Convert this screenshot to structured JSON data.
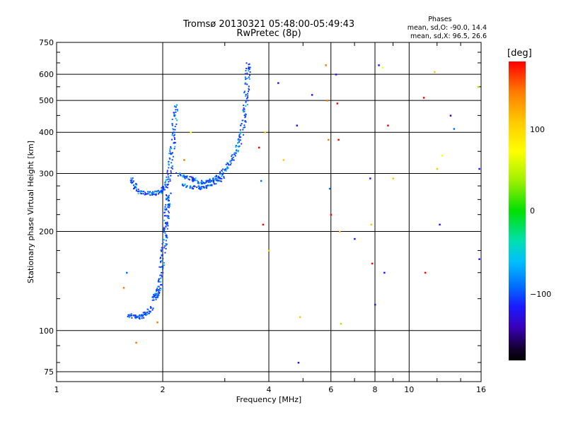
{
  "title_line1": "Tromsø 20130321 05:48:00-05:49:43",
  "title_line2": "RwPretec (8p)",
  "phases": {
    "title": "Phases",
    "line1": "mean, sd,O: -90.0, 14.4",
    "line2": "mean, sd,X:  96.5, 26.6"
  },
  "colorbar": {
    "unit_label": "[deg]",
    "ticks": [
      {
        "label": "100",
        "value": 100
      },
      {
        "label": "0",
        "value": 0
      },
      {
        "label": "−100",
        "value": -100
      }
    ],
    "range": [
      -180,
      180
    ]
  },
  "chart_data": {
    "type": "scatter",
    "xlabel": "Frequency [MHz]",
    "ylabel": "Stationary phase Virtual Height [km]",
    "xscale": "log",
    "yscale": "log",
    "xlim": [
      1,
      16
    ],
    "ylim": [
      70,
      750
    ],
    "xticks": [
      1,
      2,
      4,
      6,
      8,
      10,
      16
    ],
    "xtick_labels": [
      "1",
      "2",
      "4",
      "6",
      "8",
      "10",
      "16"
    ],
    "yticks": [
      75,
      100,
      200,
      300,
      400,
      500,
      600,
      750
    ],
    "ytick_labels": [
      "75",
      "100",
      "200",
      "300",
      "400",
      "500",
      "600",
      "750"
    ],
    "grid": true,
    "colors": {
      "o_trace": "#1530ff",
      "o_trace_alt": "#0060ff",
      "o_trace_cyan": "#00b4ff"
    },
    "traces": [
      {
        "name": "",
        "points": [
          [
            1.6,
            112
          ],
          [
            1.65,
            111
          ],
          [
            1.7,
            110
          ],
          [
            1.75,
            111
          ],
          [
            1.8,
            114
          ],
          [
            1.85,
            118
          ]
        ]
      },
      {
        "name": "",
        "points": [
          [
            1.88,
            125
          ],
          [
            1.9,
            128
          ],
          [
            1.92,
            130
          ],
          [
            1.95,
            135
          ],
          [
            1.97,
            145
          ],
          [
            1.98,
            160
          ],
          [
            2.0,
            175
          ],
          [
            2.02,
            190
          ],
          [
            2.03,
            205
          ],
          [
            2.04,
            220
          ],
          [
            2.05,
            235
          ],
          [
            2.06,
            250
          ],
          [
            2.07,
            262
          ]
        ]
      },
      {
        "name": "",
        "points": [
          [
            1.62,
            290
          ],
          [
            1.66,
            275
          ],
          [
            1.72,
            265
          ],
          [
            1.8,
            262
          ],
          [
            1.88,
            262
          ],
          [
            1.95,
            265
          ],
          [
            2.0,
            270
          ],
          [
            2.05,
            280
          ],
          [
            2.08,
            300
          ],
          [
            2.1,
            330
          ],
          [
            2.12,
            360
          ],
          [
            2.14,
            400
          ],
          [
            2.16,
            450
          ],
          [
            2.18,
            490
          ]
        ]
      },
      {
        "name": "",
        "points": [
          [
            2.2,
            300
          ],
          [
            2.3,
            295
          ],
          [
            2.4,
            290
          ],
          [
            2.5,
            284
          ],
          [
            2.6,
            283
          ],
          [
            2.7,
            285
          ],
          [
            2.8,
            290
          ],
          [
            2.9,
            298
          ],
          [
            3.0,
            310
          ],
          [
            3.1,
            325
          ],
          [
            3.2,
            345
          ],
          [
            3.28,
            370
          ],
          [
            3.34,
            400
          ],
          [
            3.38,
            440
          ],
          [
            3.42,
            490
          ],
          [
            3.45,
            550
          ],
          [
            3.47,
            610
          ],
          [
            3.48,
            650
          ]
        ]
      },
      {
        "name": "",
        "points": [
          [
            2.25,
            280
          ],
          [
            2.4,
            275
          ],
          [
            2.55,
            272
          ],
          [
            2.65,
            275
          ],
          [
            2.8,
            282
          ],
          [
            2.95,
            295
          ]
        ]
      }
    ],
    "scatter_points": [
      {
        "x": 1.58,
        "y": 150,
        "c": -110
      },
      {
        "x": 1.55,
        "y": 135,
        "c": 120
      },
      {
        "x": 1.68,
        "y": 92,
        "c": 120
      },
      {
        "x": 1.93,
        "y": 106,
        "c": 130
      },
      {
        "x": 2.3,
        "y": 330,
        "c": 130
      },
      {
        "x": 2.4,
        "y": 400,
        "c": 80
      },
      {
        "x": 3.9,
        "y": 400,
        "c": 110
      },
      {
        "x": 3.8,
        "y": 285,
        "c": -110
      },
      {
        "x": 3.85,
        "y": 210,
        "c": 170
      },
      {
        "x": 3.75,
        "y": 360,
        "c": 150
      },
      {
        "x": 4.25,
        "y": 565,
        "c": -120
      },
      {
        "x": 4.8,
        "y": 420,
        "c": -120
      },
      {
        "x": 5.3,
        "y": 520,
        "c": -120
      },
      {
        "x": 4.4,
        "y": 330,
        "c": 100
      },
      {
        "x": 4.85,
        "y": 80,
        "c": -120
      },
      {
        "x": 4.9,
        "y": 110,
        "c": 110
      },
      {
        "x": 5.8,
        "y": 640,
        "c": 140
      },
      {
        "x": 5.85,
        "y": 500,
        "c": 140
      },
      {
        "x": 5.9,
        "y": 380,
        "c": 130
      },
      {
        "x": 5.95,
        "y": 270,
        "c": -110
      },
      {
        "x": 6.0,
        "y": 225,
        "c": 150
      },
      {
        "x": 6.2,
        "y": 600,
        "c": -120
      },
      {
        "x": 6.25,
        "y": 490,
        "c": 150
      },
      {
        "x": 6.3,
        "y": 380,
        "c": 150
      },
      {
        "x": 6.35,
        "y": 200,
        "c": 100
      },
      {
        "x": 6.4,
        "y": 105,
        "c": 20
      },
      {
        "x": 7.0,
        "y": 190,
        "c": -130
      },
      {
        "x": 7.8,
        "y": 210,
        "c": 110
      },
      {
        "x": 7.75,
        "y": 290,
        "c": -120
      },
      {
        "x": 7.85,
        "y": 160,
        "c": 150
      },
      {
        "x": 8.0,
        "y": 120,
        "c": -120
      },
      {
        "x": 8.2,
        "y": 640,
        "c": -120
      },
      {
        "x": 8.4,
        "y": 630,
        "c": 60
      },
      {
        "x": 8.5,
        "y": 150,
        "c": -120
      },
      {
        "x": 8.7,
        "y": 420,
        "c": 170
      },
      {
        "x": 9.0,
        "y": 290,
        "c": 100
      },
      {
        "x": 11.0,
        "y": 510,
        "c": 150
      },
      {
        "x": 11.1,
        "y": 150,
        "c": 160
      },
      {
        "x": 11.8,
        "y": 610,
        "c": 100
      },
      {
        "x": 12.0,
        "y": 310,
        "c": 110
      },
      {
        "x": 12.4,
        "y": 340,
        "c": 40
      },
      {
        "x": 12.2,
        "y": 210,
        "c": -120
      },
      {
        "x": 13.1,
        "y": 450,
        "c": -150
      },
      {
        "x": 13.4,
        "y": 410,
        "c": -110
      },
      {
        "x": 15.8,
        "y": 310,
        "c": -120
      },
      {
        "x": 15.7,
        "y": 550,
        "c": 30
      },
      {
        "x": 15.8,
        "y": 165,
        "c": -130
      },
      {
        "x": 4.0,
        "y": 175,
        "c": 110
      }
    ]
  }
}
